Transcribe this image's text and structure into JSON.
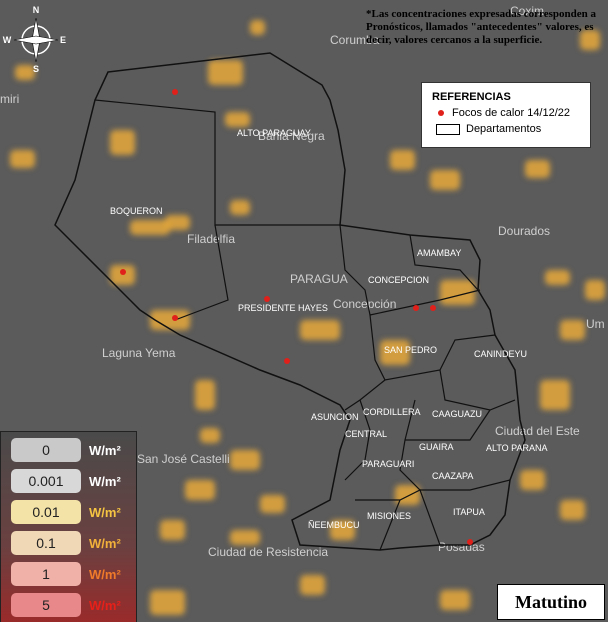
{
  "note": "*Las concentraciones expresadas corresponden a Pronósticos, llamados \"antecedentes\" valores, es decir, valores cercanos a la superficie.",
  "compass": {
    "north": "N",
    "south": "S",
    "east": "E",
    "west": "W"
  },
  "legend": {
    "title": "REFERENCIAS",
    "items": [
      "Focos de calor 14/12/22",
      "Departamentos"
    ]
  },
  "scale": {
    "unit": "W/m²",
    "levels": [
      "0",
      "0.001",
      "0.01",
      "0.1",
      "1",
      "5"
    ]
  },
  "departments": [
    "ALTO PARAGUAY",
    "BOQUERON",
    "PRESIDENTE HAYES",
    "CONCEPCION",
    "AMAMBAY",
    "SAN PEDRO",
    "CANINDEYU",
    "CORDILLERA",
    "CAAGUAZU",
    "ASUNCION",
    "CENTRAL",
    "GUAIRA",
    "ALTO PARANA",
    "PARAGUARI",
    "CAAZAPA",
    "MISIONES",
    "ITAPUA",
    "ÑEEMBUCU"
  ],
  "places": [
    "Corumba",
    "miri",
    "Coxim",
    "Bahia Negra",
    "Filadelfia",
    "Dourados",
    "PARAGUA",
    "Concepción",
    "Laguna Yema",
    "Ciudad del Este",
    "San José Castelli",
    "Ciudad de Resistencia",
    "Posadas",
    "Um"
  ],
  "badge": "Matutino"
}
